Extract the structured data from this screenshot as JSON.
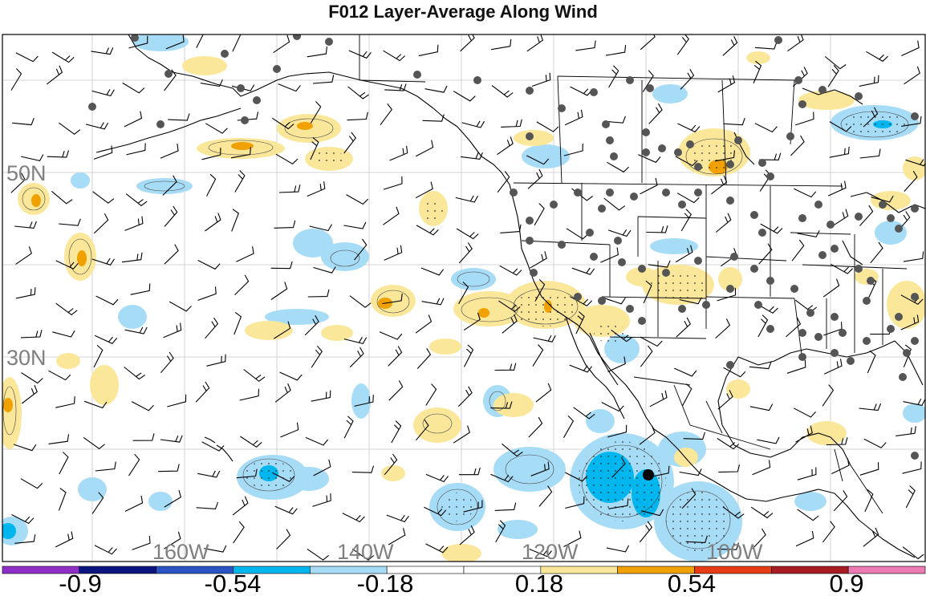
{
  "title": "F012 Layer-Average Along Wind",
  "grid_labels": {
    "lat": [
      "50N",
      "30N"
    ],
    "lon": [
      "160W",
      "140W",
      "120W",
      "100W"
    ]
  },
  "colorbar": {
    "colors": [
      "#8e2fc8",
      "#0b1580",
      "#2a54c4",
      "#00b6ee",
      "#a7dcf7",
      "#ffffff",
      "#ffffff",
      "#fbe79a",
      "#f0a100",
      "#e63b15",
      "#a81c24",
      "#ec7bb4"
    ],
    "labels": [
      "-0.9",
      "-0.54",
      "-0.18",
      "0.18",
      "0.54",
      "0.9"
    ]
  },
  "legend_colors": {
    "light_blue": "#a7dcf7",
    "cyan": "#00b6ee",
    "light_yellow": "#fbe79a",
    "orange": "#f0a100",
    "station": "#555555"
  }
}
